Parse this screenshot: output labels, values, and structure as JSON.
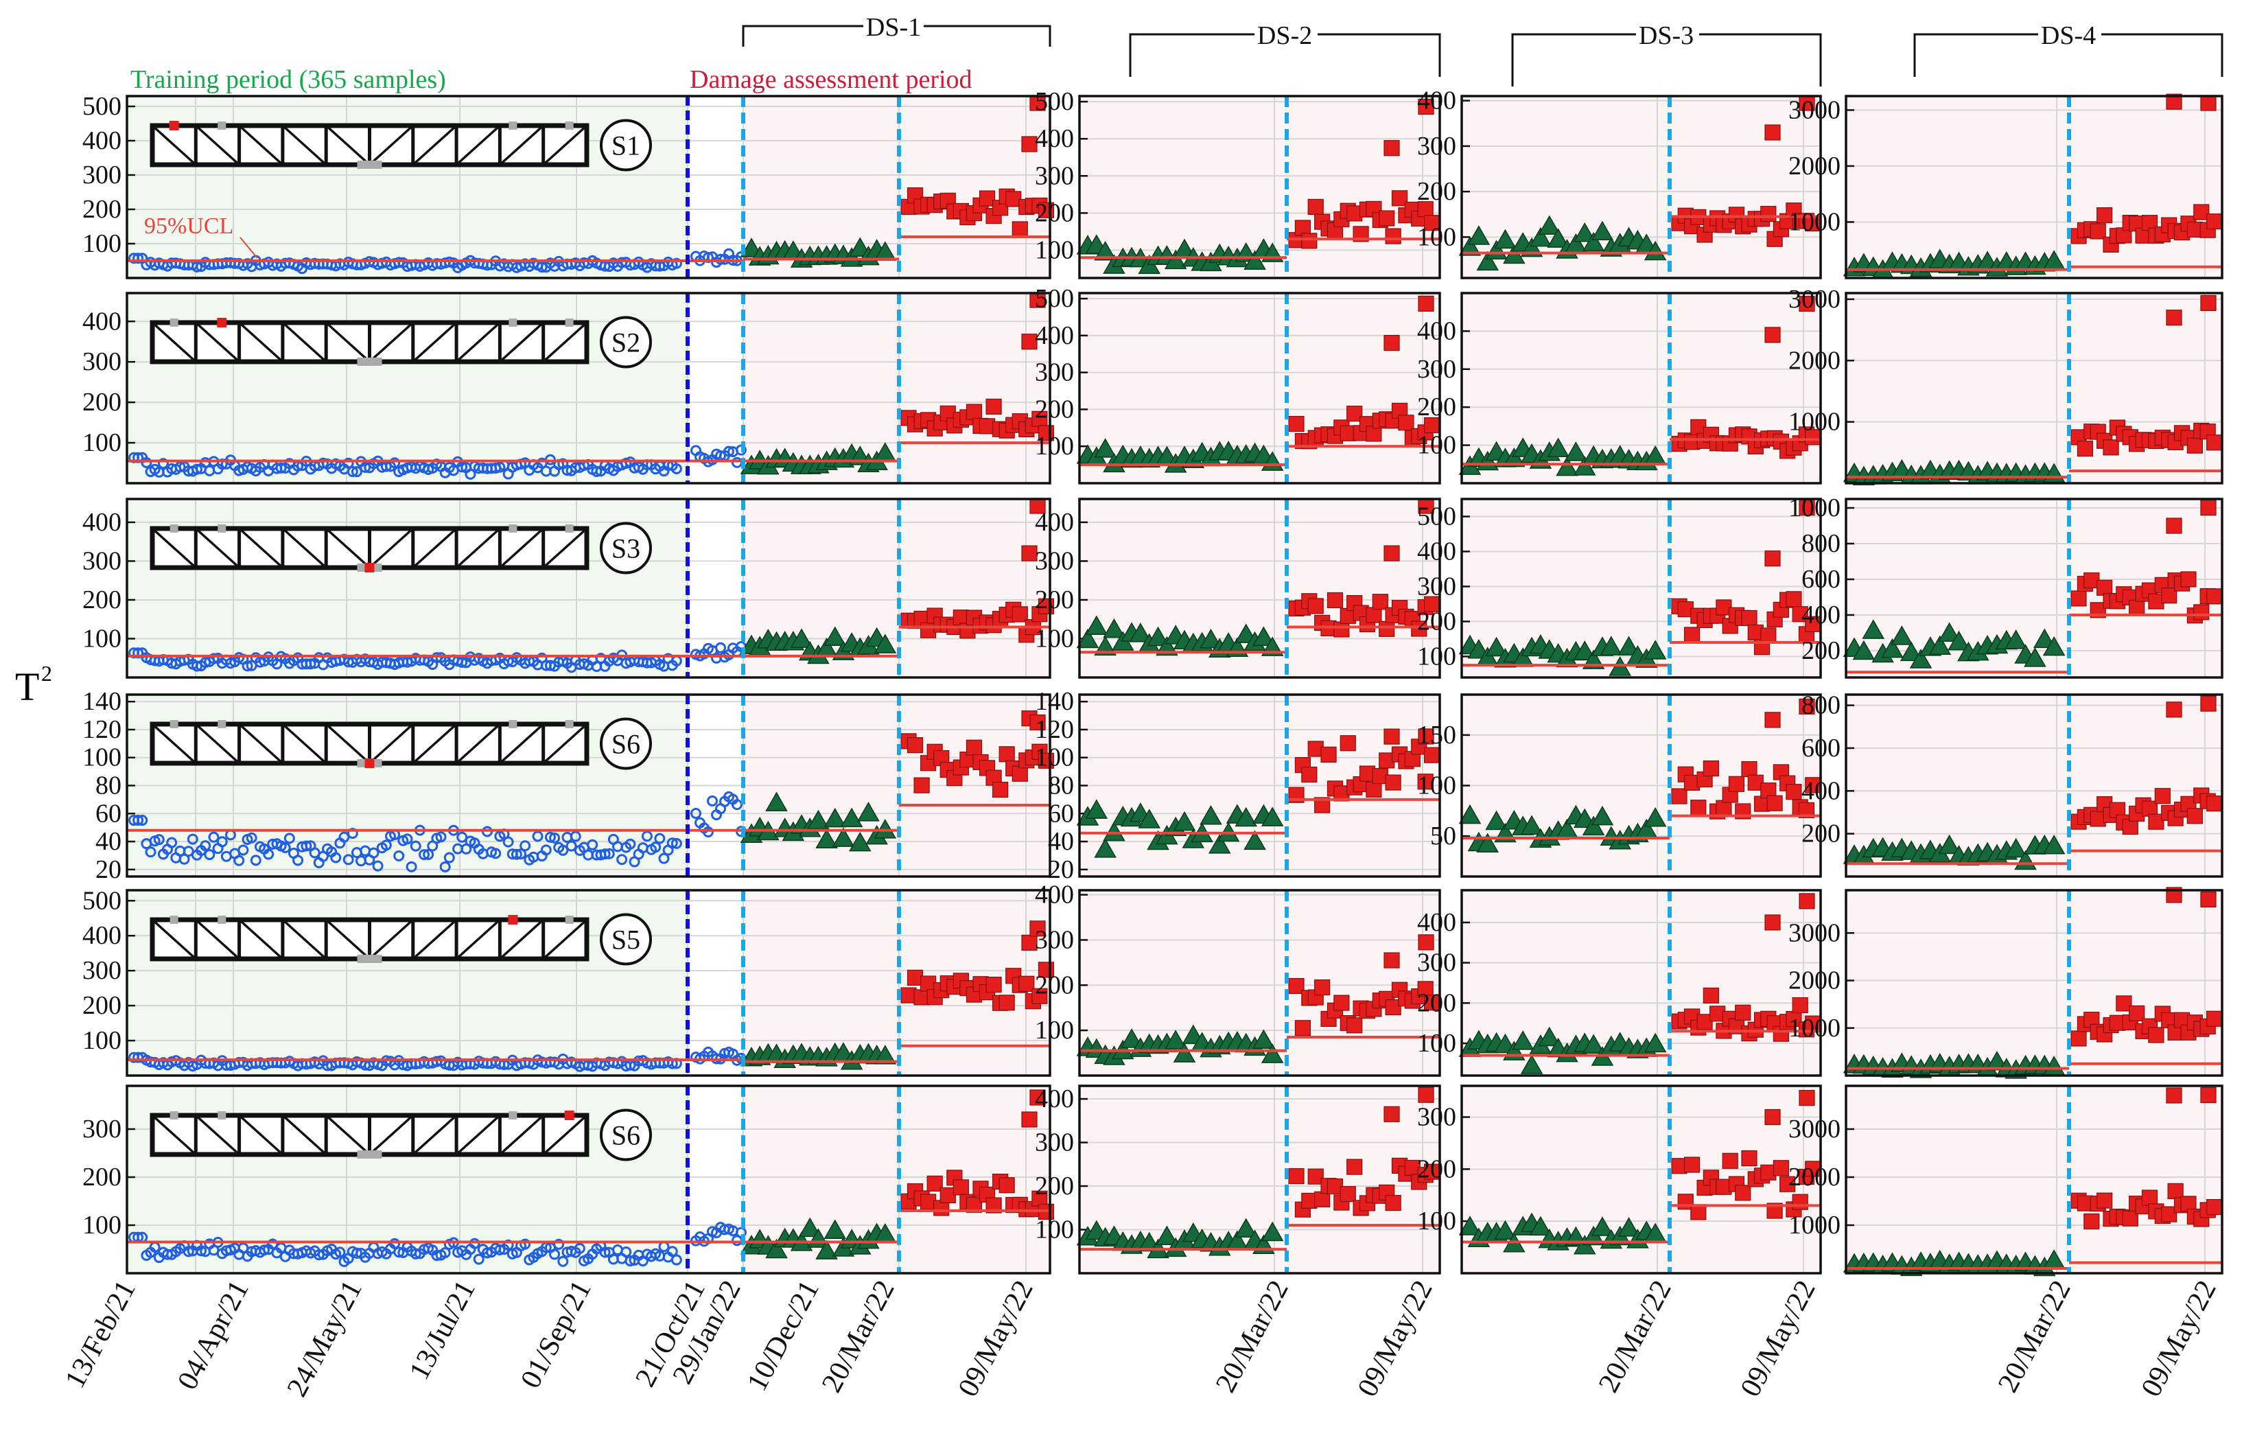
{
  "figure": {
    "ylabel": "T",
    "ylabel_sup": "2",
    "training_label": "Training period (365 samples)",
    "damage_label": "Damage assessment period",
    "ucl_label": "95%UCL",
    "stage_labels": [
      "DS-1",
      "DS-2",
      "DS-3",
      "DS-4"
    ],
    "dates_col1": [
      "13/Feb/21",
      "04/Apr/21",
      "24/May/21",
      "13/Jul/21",
      "01/Sep/21",
      "21/Oct/21",
      "10/Dec/21",
      "29/Jan/22",
      "20/Mar/22",
      "09/May/22"
    ],
    "dates_other": [
      "20/Mar/22",
      "09/May/22"
    ],
    "colors": {
      "training_bg": "#f1f8f0",
      "damage_bg": "#fcf4f4",
      "healthy_marker": "#1f5fe0",
      "healthy_stage_marker": "#16693a",
      "damaged_marker": "#e41d1d",
      "ucl_line": "#e8453c",
      "training_text": "#13a84a",
      "damage_text": "#d01a3a",
      "train_divider": "#1010e0",
      "stage_divider": "#1aa7e8"
    }
  },
  "chart_data": {
    "type": "scatter",
    "title": "",
    "xlabel": "",
    "ylabel": "T2",
    "columns": [
      "training + DS-1",
      "DS-2",
      "DS-3",
      "DS-4"
    ],
    "rows": [
      {
        "sensor": "S1",
        "panels": [
          {
            "ylim": [
              0,
              530
            ],
            "yticks": [
              100,
              200,
              300,
              400,
              500
            ],
            "ucl": 50,
            "train_mean": 40,
            "ds_base": 65,
            "ds_ucl": 55,
            "dmg_mean": 200,
            "dmg_ucl": 120,
            "outliers": [
              390,
              540
            ]
          },
          {
            "ylim": [
              25,
              515
            ],
            "yticks": [
              100,
              200,
              300,
              400,
              500
            ],
            "ucl": 80,
            "healthy_mean": 85,
            "dmg_mean": 190,
            "dmg_ucl": 130,
            "outliers": [
              375,
              505
            ]
          },
          {
            "ylim": [
              10,
              410
            ],
            "yticks": [
              100,
              200,
              300,
              400
            ],
            "ucl": 65,
            "healthy_mean": 85,
            "dmg_mean": 130,
            "dmg_ucl": 145,
            "outliers": [
              330,
              410
            ]
          },
          {
            "ylim": [
              0,
              3250
            ],
            "yticks": [
              1000,
              2000,
              3000
            ],
            "ucl": 150,
            "healthy_mean": 230,
            "dmg_mean": 900,
            "dmg_ucl": 200,
            "outliers": [
              3150,
              3250
            ]
          }
        ]
      },
      {
        "sensor": "S2",
        "panels": [
          {
            "ylim": [
              0,
              470
            ],
            "yticks": [
              100,
              200,
              300,
              400
            ],
            "ucl": 55,
            "train_mean": 40,
            "ds_base": 55,
            "ds_ucl": 55,
            "dmg_mean": 150,
            "dmg_ucl": 100,
            "outliers": [
              350,
              470
            ]
          },
          {
            "ylim": [
              0,
              515
            ],
            "yticks": [
              100,
              200,
              300,
              400,
              500
            ],
            "ucl": 50,
            "healthy_mean": 70,
            "dmg_mean": 150,
            "dmg_ucl": 100,
            "outliers": [
              380,
              505
            ]
          },
          {
            "ylim": [
              0,
              500
            ],
            "yticks": [
              100,
              200,
              300,
              400
            ],
            "ucl": 50,
            "healthy_mean": 65,
            "dmg_mean": 110,
            "dmg_ucl": 115,
            "outliers": [
              390,
              490
            ]
          },
          {
            "ylim": [
              0,
              3100
            ],
            "yticks": [
              1000,
              2000,
              3000
            ],
            "ucl": 100,
            "healthy_mean": 150,
            "dmg_mean": 700,
            "dmg_ucl": 200,
            "outliers": [
              2700,
              3050
            ]
          }
        ]
      },
      {
        "sensor": "S3",
        "panels": [
          {
            "ylim": [
              0,
              460
            ],
            "yticks": [
              100,
              200,
              300,
              400
            ],
            "ucl": 55,
            "train_mean": 40,
            "ds_base": 80,
            "ds_ucl": 55,
            "dmg_mean": 150,
            "dmg_ucl": 130,
            "outliers": [
              320,
              460
            ]
          },
          {
            "ylim": [
              0,
              460
            ],
            "yticks": [
              100,
              200,
              300,
              400
            ],
            "ucl": 65,
            "healthy_mean": 100,
            "dmg_mean": 160,
            "dmg_ucl": 130,
            "outliers": [
              320,
              460
            ]
          },
          {
            "ylim": [
              40,
              550
            ],
            "yticks": [
              100,
              200,
              300,
              400,
              500
            ],
            "ucl": 75,
            "healthy_mean": 110,
            "dmg_mean": 200,
            "dmg_ucl": 140,
            "outliers": [
              380,
              545
            ]
          },
          {
            "ylim": [
              50,
              1050
            ],
            "yticks": [
              200,
              400,
              600,
              800,
              1000
            ],
            "ucl": 80,
            "healthy_mean": 220,
            "dmg_mean": 500,
            "dmg_ucl": 400,
            "outliers": [
              900,
              1040
            ]
          }
        ]
      },
      {
        "sensor": "S6",
        "panels": [
          {
            "ylim": [
              15,
              145
            ],
            "yticks": [
              20,
              40,
              60,
              80,
              100,
              120,
              140
            ],
            "ucl": 48,
            "train_mean": 36,
            "ds_base": 50,
            "ds_ucl": 48,
            "dmg_mean": 100,
            "dmg_ucl": 66,
            "outliers": [
              128,
              130
            ]
          },
          {
            "ylim": [
              15,
              145
            ],
            "yticks": [
              20,
              40,
              60,
              80,
              100,
              120,
              140
            ],
            "ucl": 46,
            "healthy_mean": 52,
            "dmg_mean": 90,
            "dmg_ucl": 70,
            "outliers": [
              115,
              120
            ]
          },
          {
            "ylim": [
              10,
              190
            ],
            "yticks": [
              50,
              100,
              150
            ],
            "ucl": 48,
            "healthy_mean": 55,
            "dmg_mean": 95,
            "dmg_ucl": 70,
            "outliers": [
              165,
              185
            ]
          },
          {
            "ylim": [
              0,
              850
            ],
            "yticks": [
              200,
              400,
              600,
              800
            ],
            "ucl": 60,
            "healthy_mean": 110,
            "dmg_mean": 310,
            "dmg_ucl": 120,
            "outliers": [
              780,
              840
            ]
          }
        ]
      },
      {
        "sensor": "S5",
        "panels": [
          {
            "ylim": [
              0,
              530
            ],
            "yticks": [
              100,
              200,
              300,
              400,
              500
            ],
            "ucl": 45,
            "train_mean": 35,
            "ds_base": 55,
            "ds_ucl": 40,
            "dmg_mean": 260,
            "dmg_ucl": 85,
            "outliers": [
              380,
              440
            ]
          },
          {
            "ylim": [
              0,
              410
            ],
            "yticks": [
              100,
              200,
              300,
              400
            ],
            "ucl": 55,
            "healthy_mean": 65,
            "dmg_mean": 160,
            "dmg_ucl": 85,
            "outliers": [
              255,
              310
            ]
          },
          {
            "ylim": [
              20,
              480
            ],
            "yticks": [
              100,
              200,
              300,
              400
            ],
            "ucl": 70,
            "healthy_mean": 85,
            "dmg_mean": 150,
            "dmg_ucl": 130,
            "outliers": [
              400,
              470
            ]
          },
          {
            "ylim": [
              0,
              3900
            ],
            "yticks": [
              1000,
              2000,
              3000
            ],
            "ucl": 150,
            "healthy_mean": 200,
            "dmg_mean": 1100,
            "dmg_ucl": 250,
            "outliers": [
              3800,
              3850
            ]
          }
        ]
      },
      {
        "sensor": "S6",
        "panels": [
          {
            "ylim": [
              0,
              390
            ],
            "yticks": [
              100,
              200,
              300
            ],
            "ucl": 65,
            "train_mean": 45,
            "ds_base": 70,
            "ds_ucl": 65,
            "dmg_mean": 160,
            "dmg_ucl": 130,
            "outliers": [
              320,
              380
            ]
          },
          {
            "ylim": [
              0,
              430
            ],
            "yticks": [
              100,
              200,
              300,
              400
            ],
            "ucl": 55,
            "healthy_mean": 80,
            "dmg_mean": 200,
            "dmg_ucl": 110,
            "outliers": [
              365,
              425
            ]
          },
          {
            "ylim": [
              0,
              360
            ],
            "yticks": [
              100,
              200,
              300
            ],
            "ucl": 60,
            "healthy_mean": 75,
            "dmg_mean": 170,
            "dmg_ucl": 130,
            "outliers": [
              300,
              350
            ]
          },
          {
            "ylim": [
              0,
              3900
            ],
            "yticks": [
              1000,
              2000,
              3000
            ],
            "ucl": 100,
            "healthy_mean": 200,
            "dmg_mean": 1300,
            "dmg_ucl": 220,
            "outliers": [
              3700,
              3850
            ]
          }
        ]
      }
    ]
  }
}
